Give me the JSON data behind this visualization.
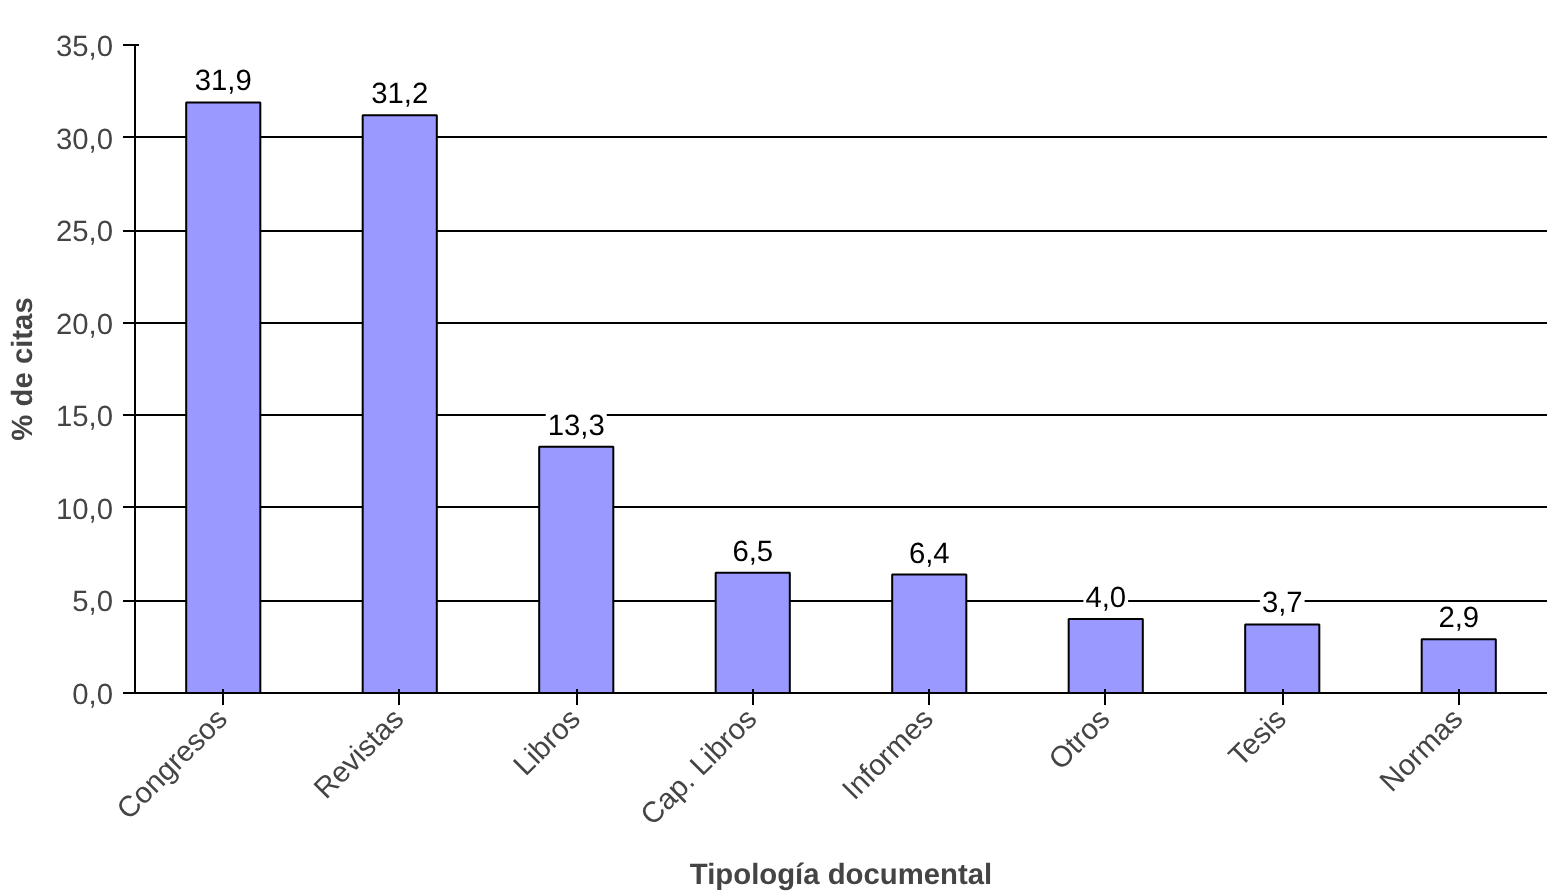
{
  "chart_data": {
    "type": "bar",
    "xlabel": "Tipología documental",
    "ylabel": "% de citas",
    "categories": [
      "Congresos",
      "Revistas",
      "Libros",
      "Cap. Libros",
      "Informes",
      "Otros",
      "Tesis",
      "Normas"
    ],
    "values": [
      31.9,
      31.2,
      13.3,
      6.5,
      6.4,
      4.0,
      3.7,
      2.9
    ],
    "value_labels": [
      "31,9",
      "31,2",
      "13,3",
      "6,5",
      "6,4",
      "4,0",
      "3,7",
      "2,9"
    ],
    "color": "#9999ff",
    "ylim": [
      0,
      35
    ],
    "yticks": [
      {
        "value": 0,
        "label": "0,0"
      },
      {
        "value": 5,
        "label": "5,0"
      },
      {
        "value": 10,
        "label": "10,0"
      },
      {
        "value": 15,
        "label": "15,0"
      },
      {
        "value": 20,
        "label": "20,0"
      },
      {
        "value": 25,
        "label": "25,0"
      },
      {
        "value": 30,
        "label": "30,0"
      },
      {
        "value": 35,
        "label": "35,0"
      }
    ],
    "grid": "y"
  }
}
